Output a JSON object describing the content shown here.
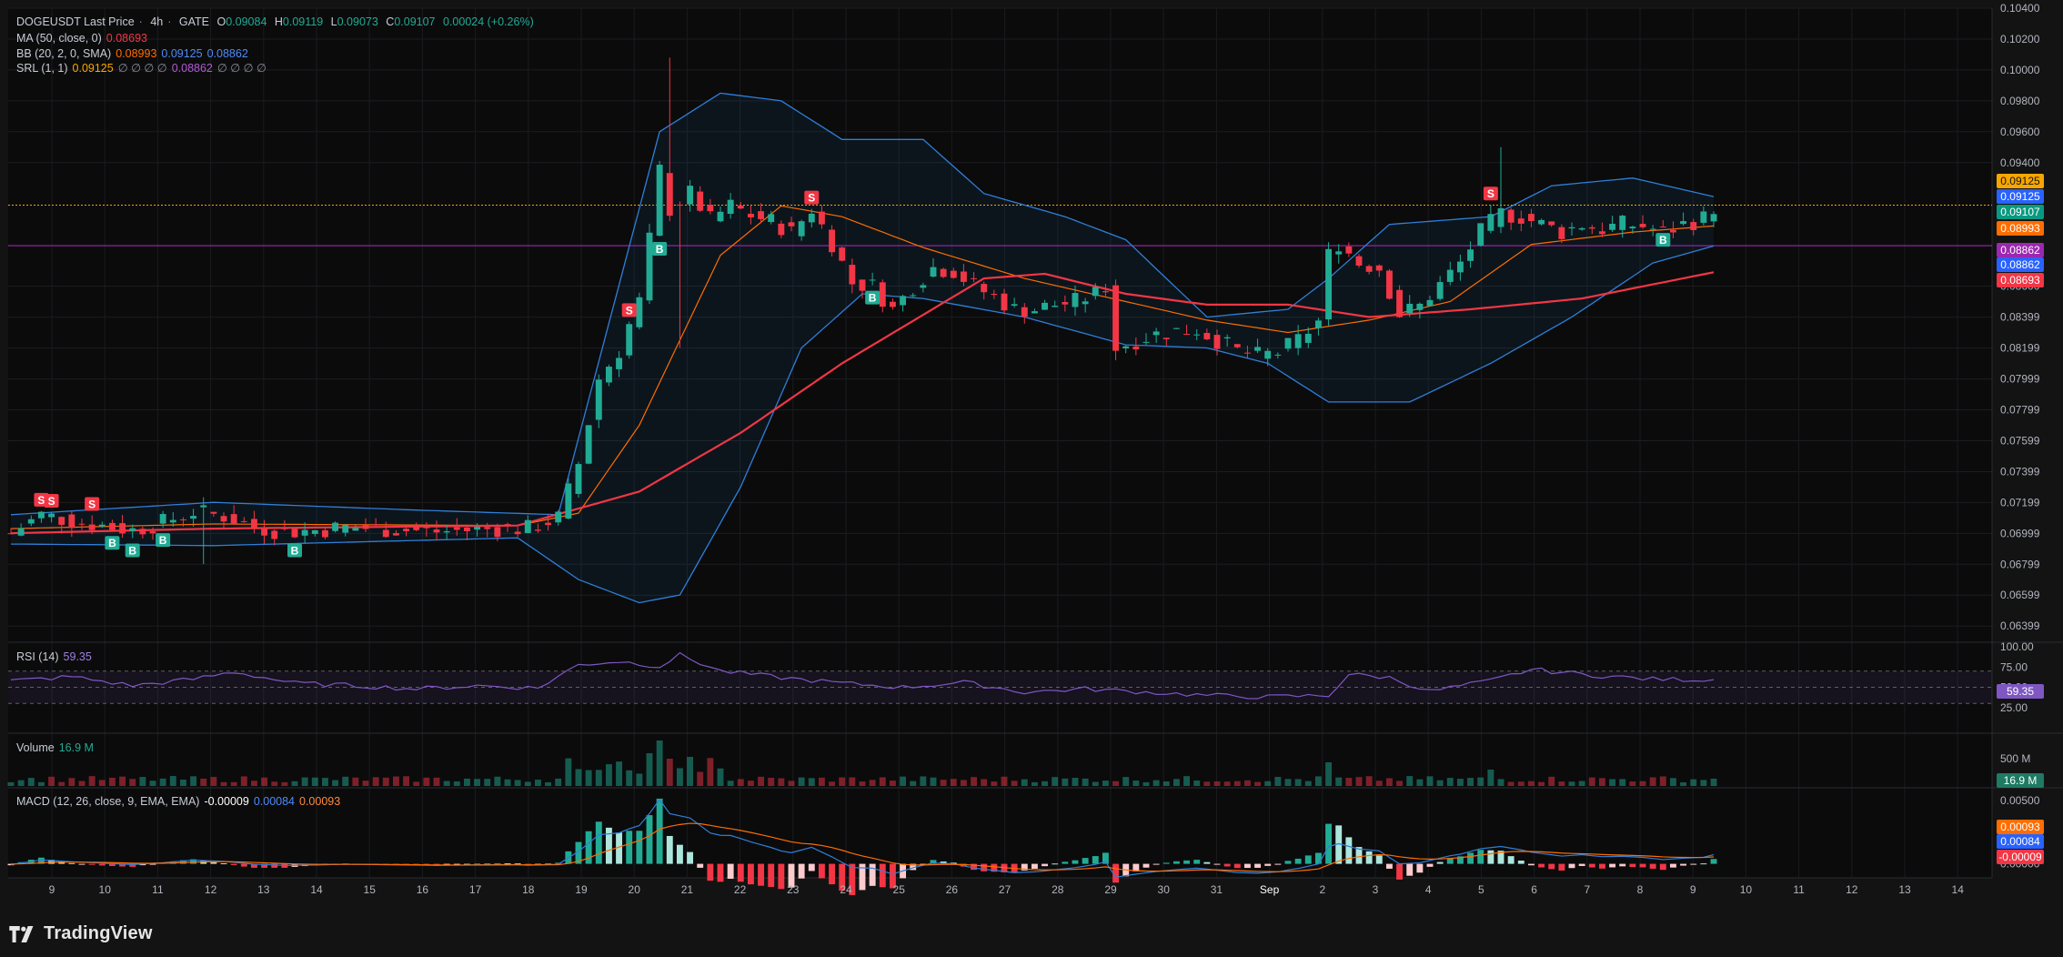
{
  "header": {
    "symbol": "DOGEUSDT Last Price",
    "interval": "4h",
    "exchange": "GATE",
    "o_label": "O",
    "o": "0.09084",
    "h_label": "H",
    "h": "0.09119",
    "l_label": "L",
    "l": "0.09073",
    "c_label": "C",
    "c": "0.09107",
    "change": "0.00024 (+0.26%)"
  },
  "indicators": {
    "ma": {
      "label": "MA (50, close, 0)",
      "value": "0.08693",
      "color": "#f23645"
    },
    "bb": {
      "label": "BB (20, 2, 0, SMA)",
      "basis": "0.08993",
      "upper": "0.09125",
      "lower": "0.08862",
      "basis_color": "#ff6d00",
      "band_color": "#2962ff"
    },
    "srl": {
      "label": "SRL (1, 1)",
      "v1": "0.09125",
      "empties1": "∅ ∅ ∅ ∅",
      "v2": "0.08862",
      "empties2": "∅ ∅ ∅ ∅",
      "v1_color": "#f7a600",
      "v2_color": "#9c27b0"
    },
    "rsi": {
      "label": "RSI (14)",
      "value": "59.35",
      "color": "#7e57c2"
    },
    "volume": {
      "label": "Volume",
      "value": "16.9 M"
    },
    "macd": {
      "label": "MACD (12, 26, close, 9, EMA, EMA)",
      "hist": "-0.00009",
      "macd": "0.00084",
      "signal": "0.00093"
    }
  },
  "price_axis": {
    "ticks": [
      "0.10400",
      "0.10200",
      "0.10000",
      "0.09800",
      "0.09600",
      "0.09400",
      "0.08600",
      "0.08399",
      "0.08199",
      "0.07999",
      "0.07799",
      "0.07599",
      "0.07399",
      "0.07199",
      "0.06999",
      "0.06799",
      "0.06599",
      "0.06399"
    ],
    "badges": [
      {
        "text": "0.09125",
        "color": "#f7a600",
        "fg": "#131313"
      },
      {
        "text": "0.09125",
        "color": "#2962ff",
        "fg": "#ffffff"
      },
      {
        "text": "0.09107",
        "color": "#089981",
        "fg": "#ffffff"
      },
      {
        "text": "0.08993",
        "color": "#ff6d00",
        "fg": "#ffffff"
      },
      {
        "text": "0.08862",
        "color": "#9c27b0",
        "fg": "#ffffff"
      },
      {
        "text": "0.08862",
        "color": "#2962ff",
        "fg": "#ffffff"
      },
      {
        "text": "0.08693",
        "color": "#f23645",
        "fg": "#ffffff"
      }
    ]
  },
  "rsi_axis": {
    "ticks": [
      "100.00",
      "75.00",
      "50.00",
      "25.00"
    ],
    "badge": "59.35"
  },
  "volume_axis": {
    "ticks": [
      "500 M"
    ],
    "badge": "16.9 M"
  },
  "macd_axis": {
    "ticks": [
      "0.00500",
      "0.00000"
    ],
    "badges": [
      {
        "text": "0.00093",
        "color": "#ff6d00"
      },
      {
        "text": "0.00084",
        "color": "#2962ff"
      },
      {
        "text": "-0.00009",
        "color": "#f23645"
      }
    ]
  },
  "time_axis": {
    "labels": [
      "9",
      "10",
      "11",
      "12",
      "13",
      "14",
      "15",
      "16",
      "17",
      "18",
      "19",
      "20",
      "21",
      "22",
      "23",
      "24",
      "25",
      "26",
      "27",
      "28",
      "29",
      "30",
      "31",
      "Sep",
      "2",
      "3",
      "4",
      "5",
      "6",
      "7",
      "8",
      "9",
      "10",
      "11",
      "12",
      "13",
      "14"
    ]
  },
  "signals": {
    "buy": "B",
    "sell": "S"
  },
  "brand": {
    "name": "TradingView"
  },
  "colors": {
    "up": "#22ab94",
    "down": "#f23645",
    "bg": "#131313",
    "pane": "#0b0b0c"
  },
  "chart_data": {
    "type": "candlestick",
    "title": "DOGEUSDT Last Price · 4h · GATE",
    "x_ticks": [
      "9",
      "10",
      "11",
      "12",
      "13",
      "14",
      "15",
      "16",
      "17",
      "18",
      "19",
      "20",
      "21",
      "22",
      "23",
      "24",
      "25",
      "26",
      "27",
      "28",
      "29",
      "30",
      "31",
      "Sep",
      "2",
      "3",
      "4",
      "5",
      "6",
      "7",
      "8",
      "9",
      "10",
      "11",
      "12",
      "13",
      "14"
    ],
    "y_range": [
      0.063,
      0.104
    ],
    "close_path": [
      [
        0,
        0.07
      ],
      [
        3,
        0.0712
      ],
      [
        6,
        0.0708
      ],
      [
        9,
        0.0705
      ],
      [
        12,
        0.0702
      ],
      [
        15,
        0.0707
      ],
      [
        18,
        0.0714
      ],
      [
        21,
        0.0711
      ],
      [
        24,
        0.0704
      ],
      [
        27,
        0.0701
      ],
      [
        30,
        0.0702
      ],
      [
        33,
        0.0704
      ],
      [
        36,
        0.0703
      ],
      [
        39,
        0.0702
      ],
      [
        42,
        0.0701
      ],
      [
        45,
        0.0702
      ],
      [
        48,
        0.0703
      ],
      [
        51,
        0.0703
      ],
      [
        54,
        0.071
      ],
      [
        56,
        0.0745
      ],
      [
        57,
        0.0772
      ],
      [
        58,
        0.08
      ],
      [
        60,
        0.0818
      ],
      [
        61,
        0.0835
      ],
      [
        62,
        0.085
      ],
      [
        63,
        0.089
      ],
      [
        64,
        0.0935
      ],
      [
        65,
        0.091
      ],
      [
        67,
        0.092
      ],
      [
        69,
        0.0903
      ],
      [
        71,
        0.0912
      ],
      [
        73,
        0.0906
      ],
      [
        75,
        0.0902
      ],
      [
        77,
        0.0895
      ],
      [
        79,
        0.091
      ],
      [
        81,
        0.0888
      ],
      [
        83,
        0.0862
      ],
      [
        85,
        0.086
      ],
      [
        87,
        0.0845
      ],
      [
        89,
        0.086
      ],
      [
        91,
        0.0872
      ],
      [
        93,
        0.087
      ],
      [
        95,
        0.086
      ],
      [
        97,
        0.0853
      ],
      [
        99,
        0.0845
      ],
      [
        101,
        0.0845
      ],
      [
        103,
        0.0848
      ],
      [
        105,
        0.085
      ],
      [
        107,
        0.0855
      ],
      [
        108,
        0.086
      ],
      [
        109,
        0.082
      ],
      [
        111,
        0.0825
      ],
      [
        113,
        0.0829
      ],
      [
        115,
        0.0831
      ],
      [
        117,
        0.0832
      ],
      [
        119,
        0.0825
      ],
      [
        121,
        0.0818
      ],
      [
        123,
        0.0815
      ],
      [
        125,
        0.0817
      ],
      [
        127,
        0.0825
      ],
      [
        129,
        0.0837
      ],
      [
        130,
        0.088
      ],
      [
        131,
        0.0888
      ],
      [
        133,
        0.0875
      ],
      [
        135,
        0.0872
      ],
      [
        137,
        0.0842
      ],
      [
        139,
        0.0847
      ],
      [
        141,
        0.0861
      ],
      [
        143,
        0.0875
      ],
      [
        145,
        0.0895
      ],
      [
        147,
        0.0907
      ],
      [
        149,
        0.0905
      ],
      [
        151,
        0.09
      ],
      [
        153,
        0.0895
      ],
      [
        155,
        0.09
      ],
      [
        157,
        0.0897
      ],
      [
        159,
        0.09
      ],
      [
        161,
        0.0899
      ],
      [
        163,
        0.0895
      ],
      [
        165,
        0.09
      ],
      [
        167,
        0.0904
      ],
      [
        168,
        0.0911
      ]
    ],
    "ma50_path": [
      [
        0,
        0.07
      ],
      [
        20,
        0.0703
      ],
      [
        50,
        0.0705
      ],
      [
        62,
        0.0727
      ],
      [
        72,
        0.0765
      ],
      [
        82,
        0.081
      ],
      [
        96,
        0.0865
      ],
      [
        102,
        0.0868
      ],
      [
        110,
        0.0855
      ],
      [
        118,
        0.0848
      ],
      [
        126,
        0.0848
      ],
      [
        134,
        0.084
      ],
      [
        144,
        0.0845
      ],
      [
        155,
        0.0852
      ],
      [
        168,
        0.0869
      ]
    ],
    "bb_upper_path": [
      [
        0,
        0.0712
      ],
      [
        20,
        0.072
      ],
      [
        40,
        0.0715
      ],
      [
        54,
        0.0712
      ],
      [
        64,
        0.096
      ],
      [
        70,
        0.0985
      ],
      [
        76,
        0.098
      ],
      [
        82,
        0.0955
      ],
      [
        90,
        0.0955
      ],
      [
        96,
        0.092
      ],
      [
        104,
        0.0905
      ],
      [
        110,
        0.089
      ],
      [
        118,
        0.084
      ],
      [
        126,
        0.0845
      ],
      [
        130,
        0.0865
      ],
      [
        136,
        0.09
      ],
      [
        146,
        0.0905
      ],
      [
        152,
        0.0925
      ],
      [
        160,
        0.093
      ],
      [
        168,
        0.0918
      ]
    ],
    "bb_basis_path": [
      [
        0,
        0.0703
      ],
      [
        20,
        0.0706
      ],
      [
        50,
        0.0705
      ],
      [
        56,
        0.0713
      ],
      [
        62,
        0.077
      ],
      [
        70,
        0.088
      ],
      [
        76,
        0.0912
      ],
      [
        82,
        0.0905
      ],
      [
        90,
        0.0885
      ],
      [
        100,
        0.0865
      ],
      [
        110,
        0.085
      ],
      [
        118,
        0.0838
      ],
      [
        126,
        0.083
      ],
      [
        134,
        0.0838
      ],
      [
        142,
        0.085
      ],
      [
        150,
        0.0887
      ],
      [
        160,
        0.0895
      ],
      [
        168,
        0.0899
      ]
    ],
    "bb_lower_path": [
      [
        0,
        0.0693
      ],
      [
        20,
        0.0692
      ],
      [
        50,
        0.0697
      ],
      [
        56,
        0.067
      ],
      [
        62,
        0.0655
      ],
      [
        66,
        0.066
      ],
      [
        72,
        0.073
      ],
      [
        78,
        0.082
      ],
      [
        84,
        0.0855
      ],
      [
        90,
        0.0852
      ],
      [
        100,
        0.084
      ],
      [
        110,
        0.0822
      ],
      [
        118,
        0.082
      ],
      [
        124,
        0.081
      ],
      [
        130,
        0.0785
      ],
      [
        138,
        0.0785
      ],
      [
        146,
        0.081
      ],
      [
        154,
        0.084
      ],
      [
        162,
        0.0875
      ],
      [
        168,
        0.0886
      ]
    ],
    "srl_levels": [
      0.09125,
      0.08862
    ],
    "rsi_range": [
      0,
      100
    ],
    "rsi_path": [
      [
        0,
        58
      ],
      [
        6,
        63
      ],
      [
        12,
        52
      ],
      [
        18,
        60
      ],
      [
        22,
        69
      ],
      [
        28,
        55
      ],
      [
        34,
        52
      ],
      [
        40,
        48
      ],
      [
        46,
        52
      ],
      [
        52,
        49
      ],
      [
        56,
        78
      ],
      [
        60,
        82
      ],
      [
        64,
        76
      ],
      [
        66,
        90
      ],
      [
        70,
        70
      ],
      [
        76,
        62
      ],
      [
        82,
        55
      ],
      [
        88,
        50
      ],
      [
        94,
        56
      ],
      [
        100,
        44
      ],
      [
        106,
        48
      ],
      [
        112,
        44
      ],
      [
        118,
        40
      ],
      [
        124,
        38
      ],
      [
        130,
        40
      ],
      [
        132,
        66
      ],
      [
        136,
        62
      ],
      [
        140,
        45
      ],
      [
        146,
        58
      ],
      [
        150,
        72
      ],
      [
        156,
        65
      ],
      [
        162,
        60
      ],
      [
        168,
        59.35
      ]
    ],
    "volume_range": [
      0,
      700
    ],
    "macd_range": [
      -0.0008,
      0.0055
    ]
  }
}
